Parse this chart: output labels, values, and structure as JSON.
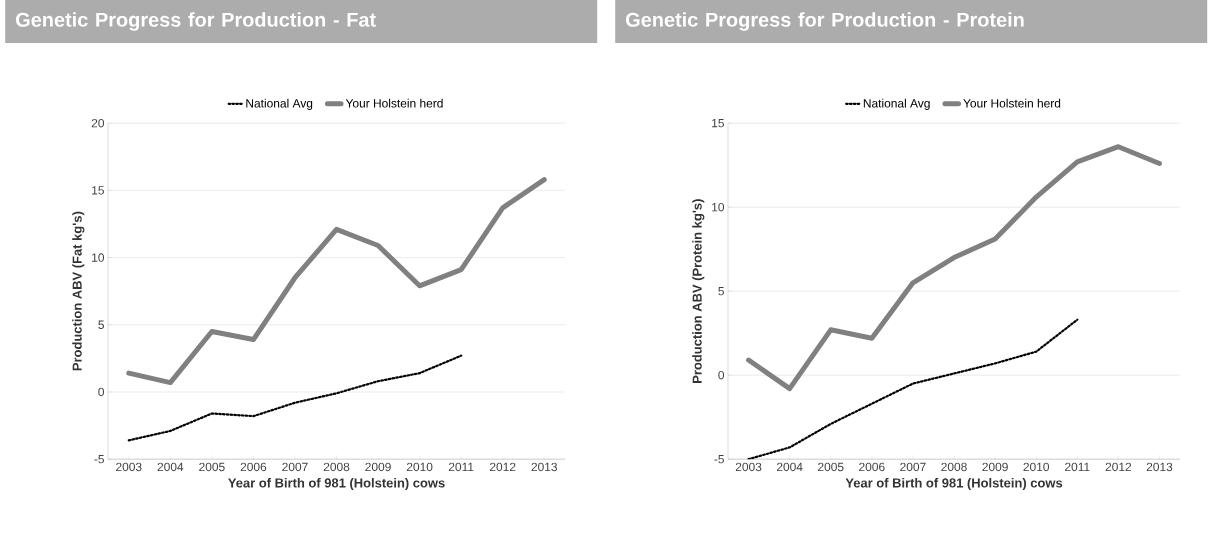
{
  "chart_data": [
    {
      "type": "line",
      "title": "Genetic Progress for Production - Fat",
      "xlabel": "Year of Birth of 981 (Holstein) cows",
      "ylabel": "Production ABV (Fat kg's)",
      "categories": [
        "2003",
        "2004",
        "2005",
        "2006",
        "2007",
        "2008",
        "2009",
        "2010",
        "2011",
        "2012",
        "2013"
      ],
      "series": [
        {
          "name": "National Avg",
          "color": "#000000",
          "line_style": "dotted",
          "values": [
            -3.6,
            -2.9,
            -1.6,
            -1.8,
            -0.8,
            -0.1,
            0.8,
            1.4,
            2.7,
            null,
            null
          ]
        },
        {
          "name": "Your Holstein herd",
          "color": "#808080",
          "line_style": "solid",
          "values": [
            1.4,
            0.7,
            4.5,
            3.9,
            8.5,
            12.1,
            10.9,
            7.9,
            9.1,
            13.7,
            15.8
          ]
        }
      ],
      "ylim": [
        -5,
        20
      ],
      "yticks": [
        -5,
        0,
        5,
        10,
        15,
        20
      ],
      "grid": "y",
      "legend": "top"
    },
    {
      "type": "line",
      "title": "Genetic Progress for Production - Protein",
      "xlabel": "Year of Birth of 981 (Holstein) cows",
      "ylabel": "Production ABV (Protein kg's)",
      "categories": [
        "2003",
        "2004",
        "2005",
        "2006",
        "2007",
        "2008",
        "2009",
        "2010",
        "2011",
        "2012",
        "2013"
      ],
      "series": [
        {
          "name": "National Avg",
          "color": "#000000",
          "line_style": "dotted",
          "values": [
            -5.0,
            -4.3,
            -2.9,
            -1.7,
            -0.5,
            0.1,
            0.7,
            1.4,
            3.3,
            null,
            null
          ]
        },
        {
          "name": "Your Holstein herd",
          "color": "#808080",
          "line_style": "solid",
          "values": [
            0.9,
            -0.8,
            2.7,
            2.2,
            5.5,
            7.0,
            8.1,
            10.6,
            12.7,
            13.6,
            12.6
          ]
        }
      ],
      "ylim": [
        -5,
        15
      ],
      "yticks": [
        -5,
        0,
        5,
        10,
        15
      ],
      "grid": "y",
      "legend": "top"
    }
  ]
}
